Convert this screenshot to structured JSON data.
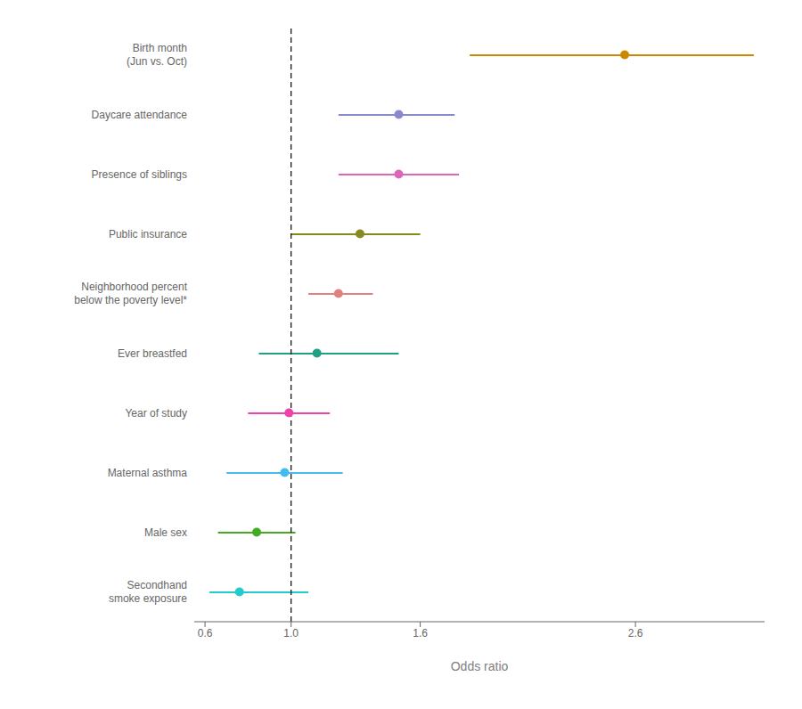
{
  "chart_data": {
    "type": "forest",
    "categories": [
      "Birth month\n(Jun vs. Oct)",
      "Daycare attendance",
      "Presence of siblings",
      "Public insurance",
      "Neighborhood percent\nbelow the poverty level*",
      "Ever breastfed",
      "Year of study",
      "Maternal asthma",
      "Male sex",
      "Secondhand\nsmoke exposure"
    ],
    "values": [
      2.55,
      1.5,
      1.5,
      1.32,
      1.22,
      1.12,
      0.99,
      0.97,
      0.84,
      0.76
    ],
    "ci_low": [
      1.83,
      1.22,
      1.22,
      1.0,
      1.08,
      0.85,
      0.8,
      0.7,
      0.66,
      0.62
    ],
    "ci_high": [
      3.15,
      1.76,
      1.78,
      1.6,
      1.38,
      1.5,
      1.18,
      1.24,
      1.02,
      1.08
    ],
    "colors": [
      "#cc8800",
      "#8888cc",
      "#dd66bb",
      "#888820",
      "#e08080",
      "#20a080",
      "#ee44aa",
      "#44bbee",
      "#44aa22",
      "#22cccc"
    ],
    "xlabel": "Odds ratio",
    "xlim": [
      0.55,
      3.2
    ],
    "xticks": [
      0.6,
      {
        "value": 1.0,
        "label": "1.0"
      },
      1.6,
      2.6
    ],
    "null_line": 1.0
  }
}
